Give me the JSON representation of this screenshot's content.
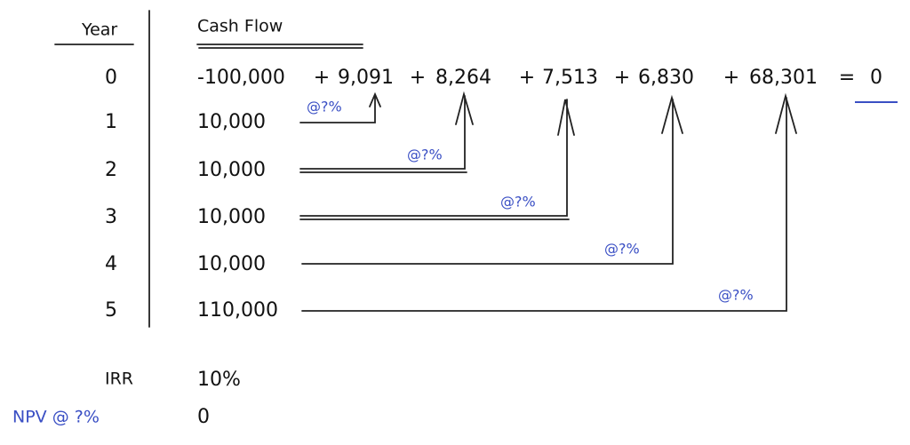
{
  "header": {
    "year": "Year",
    "cash_flow": "Cash Flow"
  },
  "rows": [
    {
      "year": "0",
      "cash_flow": "-100,000"
    },
    {
      "year": "1",
      "cash_flow": "10,000"
    },
    {
      "year": "2",
      "cash_flow": "10,000"
    },
    {
      "year": "3",
      "cash_flow": "10,000"
    },
    {
      "year": "4",
      "cash_flow": "10,000"
    },
    {
      "year": "5",
      "cash_flow": "110,000"
    }
  ],
  "equation": {
    "operator": "+",
    "terms": [
      "9,091",
      "8,264",
      "7,513",
      "6,830",
      "68,301"
    ],
    "equals": "=",
    "result": "0"
  },
  "arrow_labels": [
    "@?%",
    "@?%",
    "@?%",
    "@?%",
    "@?%"
  ],
  "summary": {
    "irr_label": "IRR",
    "irr_value": "10%",
    "npv_label": "NPV @ ?%",
    "npv_value": "0"
  }
}
